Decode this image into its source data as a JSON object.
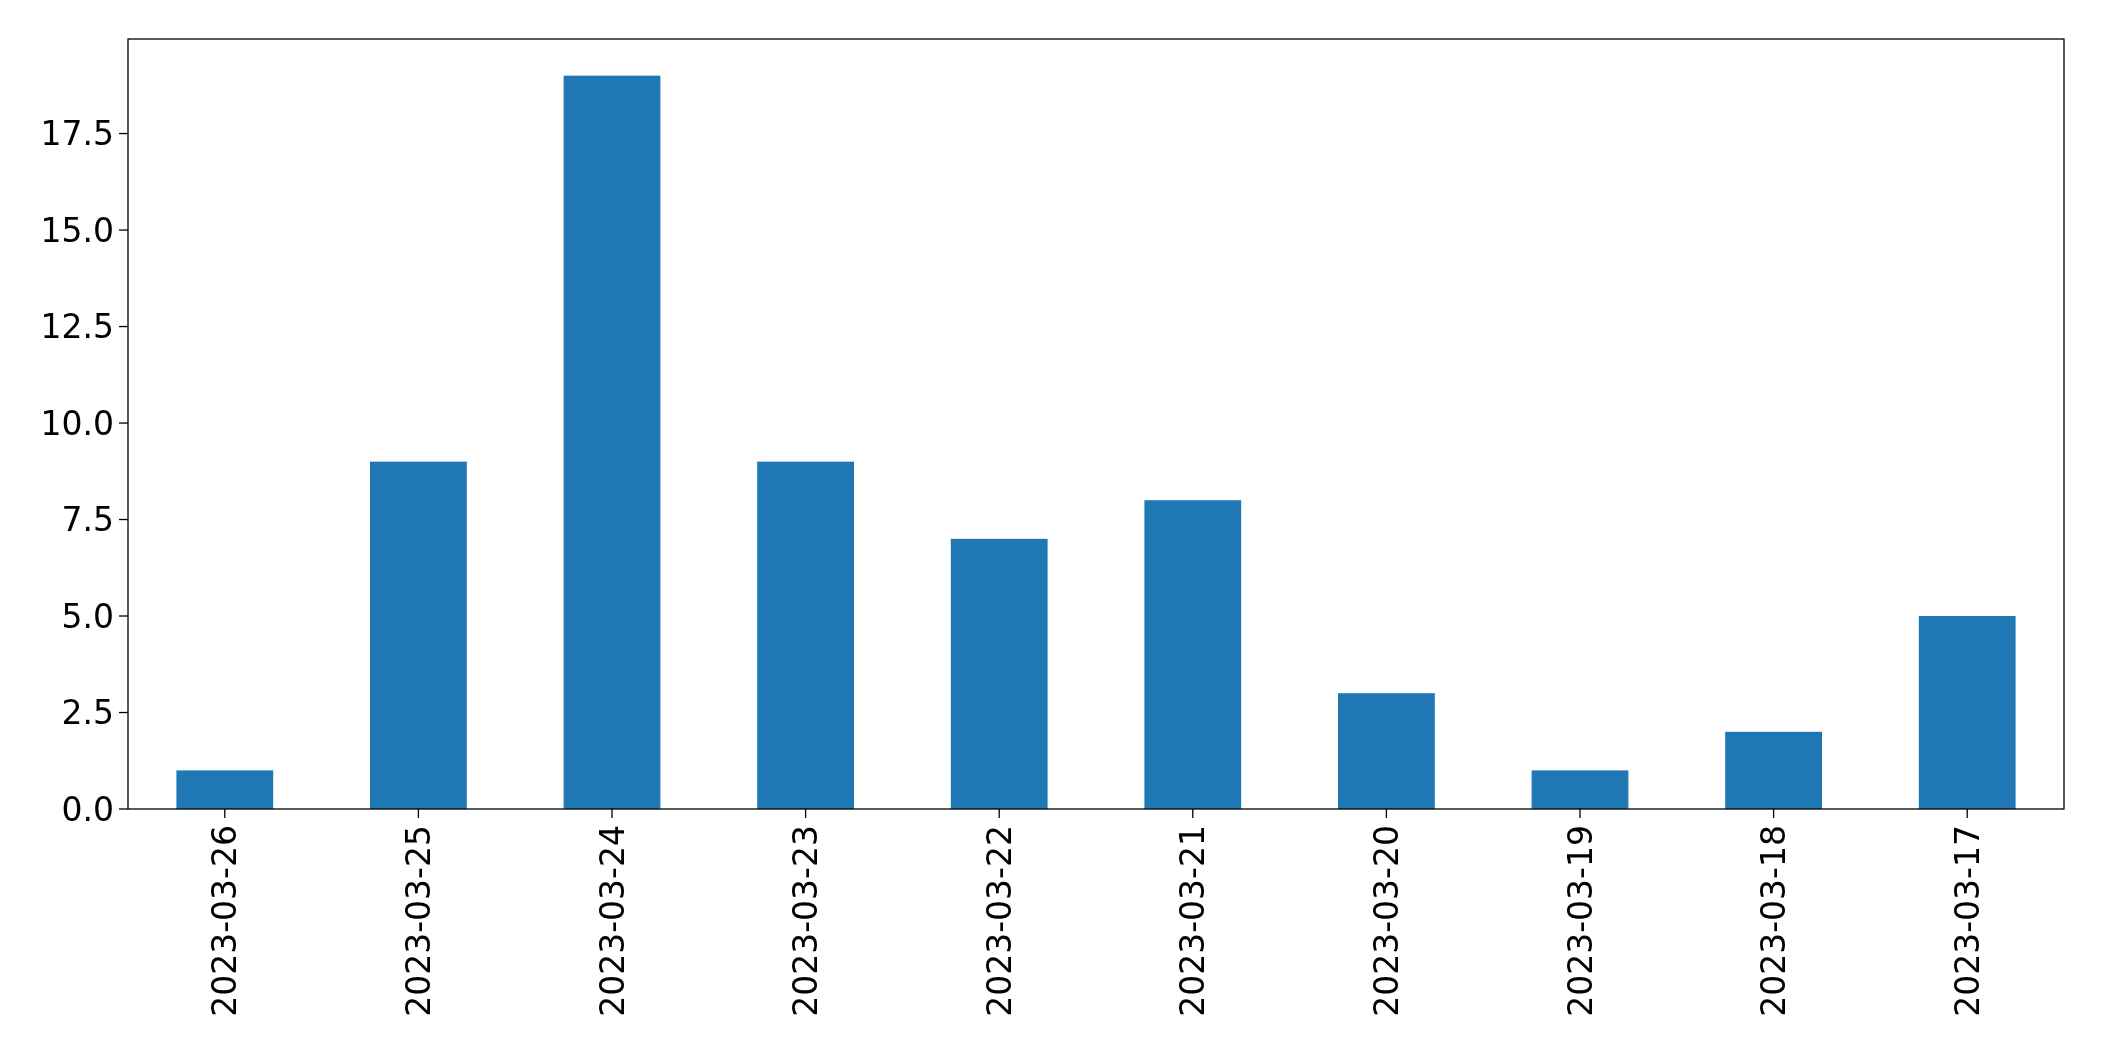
{
  "chart_data": {
    "type": "bar",
    "categories": [
      "2023-03-26",
      "2023-03-25",
      "2023-03-24",
      "2023-03-23",
      "2023-03-22",
      "2023-03-21",
      "2023-03-20",
      "2023-03-19",
      "2023-03-18",
      "2023-03-17"
    ],
    "values": [
      1,
      9,
      19,
      9,
      7,
      8,
      3,
      1,
      2,
      5
    ],
    "color": "#1f77b4",
    "ylim": [
      0,
      19.95
    ],
    "yticks": [
      {
        "value": 0,
        "label": "0.0"
      },
      {
        "value": 2.5,
        "label": "2.5"
      },
      {
        "value": 5,
        "label": "5.0"
      },
      {
        "value": 7.5,
        "label": "7.5"
      },
      {
        "value": 10,
        "label": "10.0"
      },
      {
        "value": 12.5,
        "label": "12.5"
      },
      {
        "value": 15,
        "label": "15.0"
      },
      {
        "value": 17.5,
        "label": "17.5"
      }
    ],
    "grid": false
  }
}
